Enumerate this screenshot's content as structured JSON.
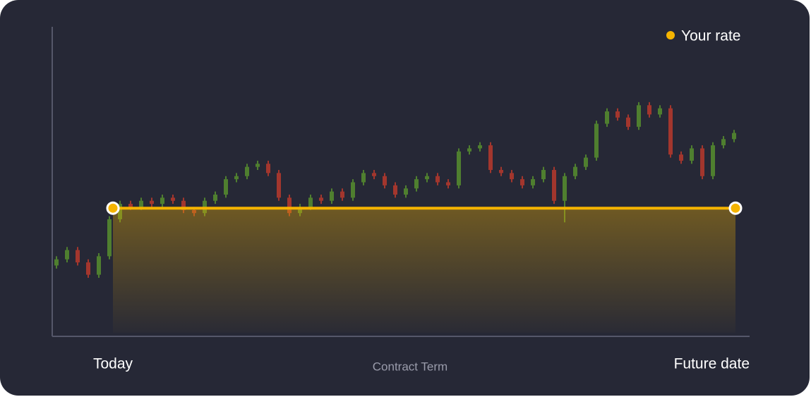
{
  "chart_data": {
    "type": "candlestick",
    "legend": "Your rate",
    "start_label": "Today",
    "end_label": "Future date",
    "x_label": "Contract Term",
    "ylim": [
      0,
      100
    ],
    "rate": 41.6,
    "rate_color": "#f5b400",
    "up_color": "#4f7f2f",
    "down_color": "#a3362d",
    "open": [
      23,
      25,
      28,
      24,
      20,
      26,
      38,
      43,
      42,
      44,
      43,
      45,
      44,
      41,
      40,
      44,
      46,
      51,
      52,
      55,
      56,
      53,
      45,
      40,
      42,
      45,
      44,
      47,
      45,
      50,
      53,
      52,
      49,
      46,
      48,
      51,
      52,
      50,
      49,
      60,
      61,
      62,
      54,
      53,
      51,
      49,
      51,
      54,
      44,
      52,
      55,
      58,
      69,
      73,
      71,
      68,
      75,
      72,
      74,
      59,
      57,
      61,
      52,
      62,
      64
    ],
    "high": [
      26,
      29,
      29,
      25,
      27,
      39,
      44,
      44,
      45,
      45,
      46,
      46,
      45,
      42,
      45,
      47,
      52,
      53,
      56,
      57,
      57,
      54,
      46,
      43,
      46,
      46,
      48,
      48,
      51,
      54,
      54,
      53,
      50,
      49,
      52,
      53,
      53,
      51,
      61,
      62,
      63,
      63,
      55,
      54,
      52,
      52,
      55,
      55,
      53,
      56,
      59,
      70,
      74,
      74,
      72,
      76,
      76,
      75,
      75,
      60,
      62,
      62,
      63,
      65,
      67
    ],
    "low": [
      22,
      24,
      23,
      19,
      19,
      25,
      37,
      41,
      41,
      42,
      42,
      43,
      40,
      39,
      39,
      43,
      45,
      50,
      51,
      54,
      52,
      44,
      39,
      39,
      41,
      43,
      43,
      44,
      44,
      49,
      51,
      48,
      45,
      45,
      47,
      50,
      49,
      48,
      48,
      59,
      60,
      53,
      52,
      50,
      48,
      48,
      50,
      43,
      37,
      51,
      54,
      57,
      68,
      70,
      67,
      67,
      71,
      71,
      58,
      56,
      56,
      51,
      51,
      61,
      63
    ],
    "close": [
      25,
      28,
      24,
      20,
      26,
      38,
      43,
      42,
      44,
      43,
      45,
      44,
      41,
      40,
      44,
      46,
      51,
      52,
      55,
      56,
      53,
      45,
      40,
      42,
      45,
      44,
      47,
      45,
      50,
      53,
      52,
      49,
      46,
      48,
      51,
      52,
      50,
      49,
      60,
      61,
      62,
      54,
      53,
      51,
      49,
      51,
      54,
      44,
      52,
      55,
      58,
      69,
      73,
      71,
      68,
      75,
      72,
      74,
      59,
      57,
      61,
      52,
      62,
      64,
      66
    ]
  }
}
